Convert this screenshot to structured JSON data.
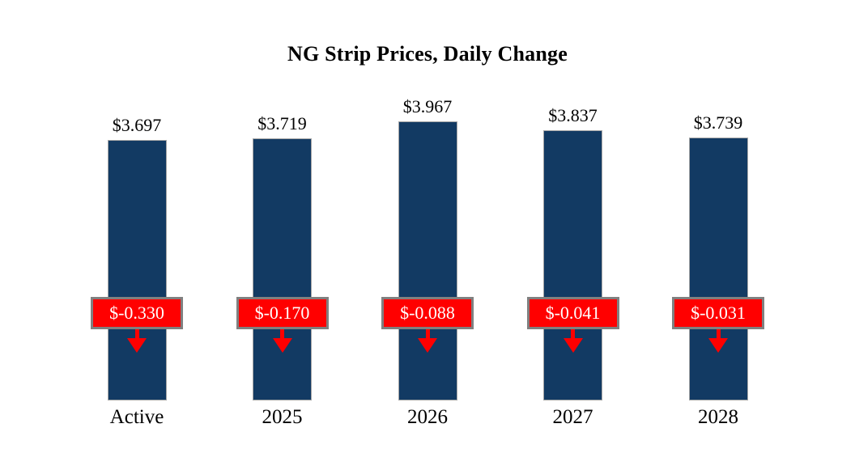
{
  "chart_data": {
    "type": "bar",
    "title": "NG Strip Prices, Daily Change",
    "categories": [
      "Active",
      "2025",
      "2026",
      "2027",
      "2028"
    ],
    "series": [
      {
        "name": "Strip Price",
        "values": [
          3.697,
          3.719,
          3.967,
          3.837,
          3.739
        ],
        "labels": [
          "$3.697",
          "$3.719",
          "$3.967",
          "$3.837",
          "$3.739"
        ]
      },
      {
        "name": "Daily Change",
        "values": [
          -0.33,
          -0.17,
          -0.088,
          -0.041,
          -0.031
        ],
        "labels": [
          "$-0.330",
          "$-0.170",
          "$-0.088",
          "$-0.041",
          "$-0.031"
        ]
      }
    ],
    "ylim": [
      0,
      4
    ],
    "grid": false,
    "legend": "none",
    "colors": {
      "bar_fill": "#123A63",
      "bar_border": "#A6A6A6",
      "badge_fill": "#FF0000",
      "badge_border": "#808080",
      "badge_text": "#FFFFFF",
      "arrow": "#FF0000",
      "text": "#000000",
      "background": "#FFFFFF"
    }
  }
}
